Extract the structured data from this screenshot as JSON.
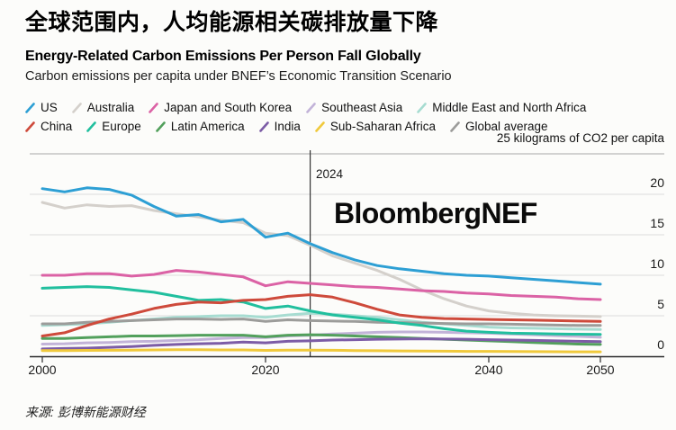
{
  "header": {
    "title_zh": "全球范围内，人均能源相关碳排放量下降",
    "title_en": "Energy-Related Carbon Emissions Per Person Fall Globally",
    "subtitle": "Carbon emissions per capita under BNEF’s Economic Transition Scenario"
  },
  "watermark": "BloombergNEF",
  "source": "来源: 彭博新能源财经",
  "chart_data": {
    "type": "line",
    "unit_label": "25 kilograms of CO2 per capita",
    "vline_year": 2024,
    "vline_label": "2024",
    "xlim": [
      2000,
      2050
    ],
    "ylim": [
      0,
      25
    ],
    "x_ticks": [
      2000,
      2020,
      2040,
      2050
    ],
    "y_ticks": [
      0,
      5,
      10,
      15,
      20
    ],
    "grid_values": [
      5,
      10,
      15,
      20,
      25
    ],
    "legend_position": "top",
    "grid": true,
    "years": [
      2000,
      2002,
      2004,
      2006,
      2008,
      2010,
      2012,
      2014,
      2016,
      2018,
      2020,
      2022,
      2024,
      2026,
      2028,
      2030,
      2032,
      2034,
      2036,
      2038,
      2040,
      2042,
      2044,
      2046,
      2048,
      2050
    ],
    "series": [
      {
        "name": "US",
        "color": "#2D9FD4",
        "legend_row": 1,
        "values": [
          20.7,
          20.3,
          20.8,
          20.6,
          19.9,
          18.5,
          17.3,
          17.5,
          16.6,
          16.9,
          14.7,
          15.2,
          13.9,
          12.8,
          11.9,
          11.2,
          10.8,
          10.5,
          10.2,
          10.0,
          9.9,
          9.7,
          9.5,
          9.3,
          9.1,
          8.9
        ]
      },
      {
        "name": "Australia",
        "color": "#D4D0CB",
        "legend_row": 1,
        "values": [
          19.0,
          18.3,
          18.7,
          18.5,
          18.6,
          18.0,
          17.6,
          17.2,
          16.8,
          16.5,
          15.2,
          14.9,
          13.7,
          12.4,
          11.5,
          10.6,
          9.5,
          8.2,
          7.1,
          6.2,
          5.6,
          5.3,
          5.1,
          5.0,
          4.95,
          4.9
        ]
      },
      {
        "name": "Japan and South Korea",
        "color": "#DB62A5",
        "legend_row": 1,
        "values": [
          10.0,
          10.0,
          10.2,
          10.2,
          9.9,
          10.1,
          10.6,
          10.4,
          10.1,
          9.8,
          8.7,
          9.2,
          9.0,
          8.8,
          8.6,
          8.5,
          8.3,
          8.1,
          8.0,
          7.8,
          7.7,
          7.5,
          7.4,
          7.3,
          7.1,
          7.0
        ]
      },
      {
        "name": "Southeast Asia",
        "color": "#C2B3D8",
        "legend_row": 1,
        "values": [
          1.5,
          1.55,
          1.65,
          1.7,
          1.8,
          1.85,
          1.95,
          2.05,
          2.2,
          2.3,
          2.3,
          2.5,
          2.6,
          2.75,
          2.85,
          2.95,
          3.0,
          3.0,
          2.95,
          2.9,
          2.85,
          2.75,
          2.65,
          2.55,
          2.45,
          2.35
        ]
      },
      {
        "name": "Middle East and North Africa",
        "color": "#A7DCD1",
        "legend_row": 1,
        "values": [
          3.8,
          3.9,
          4.0,
          4.2,
          4.4,
          4.6,
          4.8,
          4.9,
          5.0,
          5.0,
          4.8,
          5.1,
          5.3,
          5.2,
          5.0,
          4.8,
          4.5,
          4.2,
          4.0,
          3.8,
          3.6,
          3.5,
          3.45,
          3.4,
          3.35,
          3.3
        ]
      },
      {
        "name": "China",
        "color": "#CE4A3B",
        "legend_row": 2,
        "values": [
          2.5,
          2.9,
          3.8,
          4.6,
          5.2,
          5.9,
          6.4,
          6.7,
          6.6,
          6.9,
          7.0,
          7.4,
          7.6,
          7.3,
          6.6,
          5.8,
          5.1,
          4.8,
          4.65,
          4.6,
          4.55,
          4.5,
          4.45,
          4.4,
          4.35,
          4.3
        ]
      },
      {
        "name": "Europe",
        "color": "#21BF9E",
        "legend_row": 2,
        "values": [
          8.4,
          8.5,
          8.6,
          8.5,
          8.2,
          7.9,
          7.4,
          6.9,
          7.0,
          6.7,
          5.9,
          6.2,
          5.6,
          5.1,
          4.8,
          4.5,
          4.1,
          3.8,
          3.4,
          3.1,
          2.95,
          2.85,
          2.8,
          2.75,
          2.72,
          2.7
        ]
      },
      {
        "name": "Latin America",
        "color": "#52A05C",
        "legend_row": 2,
        "values": [
          2.2,
          2.2,
          2.3,
          2.4,
          2.5,
          2.5,
          2.55,
          2.6,
          2.6,
          2.6,
          2.4,
          2.6,
          2.65,
          2.6,
          2.5,
          2.4,
          2.3,
          2.2,
          2.1,
          2.0,
          1.9,
          1.8,
          1.7,
          1.6,
          1.5,
          1.45
        ]
      },
      {
        "name": "India",
        "color": "#7C5CA6",
        "legend_row": 2,
        "values": [
          0.9,
          0.95,
          1.0,
          1.1,
          1.2,
          1.35,
          1.45,
          1.55,
          1.6,
          1.75,
          1.65,
          1.85,
          1.9,
          2.0,
          2.05,
          2.1,
          2.12,
          2.15,
          2.12,
          2.1,
          2.05,
          2.0,
          1.95,
          1.9,
          1.85,
          1.8
        ]
      },
      {
        "name": "Sub-Saharan Africa",
        "color": "#F0C93C",
        "legend_row": 2,
        "values": [
          0.7,
          0.7,
          0.72,
          0.73,
          0.75,
          0.78,
          0.8,
          0.8,
          0.78,
          0.78,
          0.72,
          0.75,
          0.75,
          0.73,
          0.7,
          0.68,
          0.66,
          0.64,
          0.62,
          0.6,
          0.6,
          0.58,
          0.57,
          0.56,
          0.55,
          0.55
        ]
      },
      {
        "name": "Global average",
        "color": "#9C9C9A",
        "legend_row": 2,
        "values": [
          4.0,
          4.0,
          4.2,
          4.3,
          4.4,
          4.5,
          4.6,
          4.6,
          4.55,
          4.6,
          4.3,
          4.5,
          4.4,
          4.35,
          4.3,
          4.2,
          4.15,
          4.1,
          4.05,
          4.0,
          4.0,
          3.95,
          3.9,
          3.85,
          3.8,
          3.8
        ]
      }
    ],
    "draw_order": [
      "Australia",
      "Middle East and North Africa",
      "Global average",
      "Southeast Asia",
      "Latin America",
      "India",
      "Sub-Saharan Africa",
      "Europe",
      "Japan and South Korea",
      "China",
      "US"
    ]
  }
}
